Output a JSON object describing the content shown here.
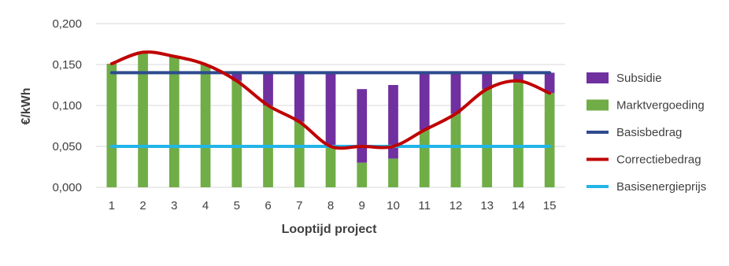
{
  "chart_data": {
    "type": "bar",
    "xlabel": "Looptijd project",
    "ylabel": "€/kWh",
    "ylim": [
      0,
      0.2
    ],
    "ytick_step": 0.05,
    "ytick_labels": [
      "0,000",
      "0,050",
      "0,100",
      "0,150",
      "0,200"
    ],
    "grid": "horizontal",
    "legend_position": "right",
    "categories": [
      "1",
      "2",
      "3",
      "4",
      "5",
      "6",
      "7",
      "8",
      "9",
      "10",
      "11",
      "12",
      "13",
      "14",
      "15"
    ],
    "series": [
      {
        "name": "Subsidie",
        "kind": "bar-stacked-top",
        "color": "#7030a0",
        "values": [
          0,
          0,
          0,
          0,
          0.01,
          0.04,
          0.06,
          0.09,
          0.09,
          0.09,
          0.07,
          0.05,
          0.02,
          0.01,
          0.025
        ]
      },
      {
        "name": "Marktvergoeding",
        "kind": "bar",
        "color": "#70ad47",
        "values": [
          0.151,
          0.165,
          0.16,
          0.15,
          0.13,
          0.1,
          0.08,
          0.05,
          0.03,
          0.035,
          0.07,
          0.09,
          0.12,
          0.13,
          0.115
        ]
      },
      {
        "name": "Basisbedrag",
        "kind": "line",
        "color": "#2e4b8f",
        "values": [
          0.14,
          0.14,
          0.14,
          0.14,
          0.14,
          0.14,
          0.14,
          0.14,
          0.14,
          0.14,
          0.14,
          0.14,
          0.14,
          0.14,
          0.14
        ]
      },
      {
        "name": "Correctiebedrag",
        "kind": "line-smooth",
        "color": "#c00000",
        "values": [
          0.151,
          0.165,
          0.16,
          0.15,
          0.13,
          0.1,
          0.08,
          0.05,
          0.05,
          0.05,
          0.07,
          0.09,
          0.12,
          0.13,
          0.115
        ]
      },
      {
        "name": "Basisenergieprijs",
        "kind": "line",
        "color": "#22b5e8",
        "values": [
          0.05,
          0.05,
          0.05,
          0.05,
          0.05,
          0.05,
          0.05,
          0.05,
          0.05,
          0.05,
          0.05,
          0.05,
          0.05,
          0.05,
          0.05
        ]
      }
    ]
  }
}
